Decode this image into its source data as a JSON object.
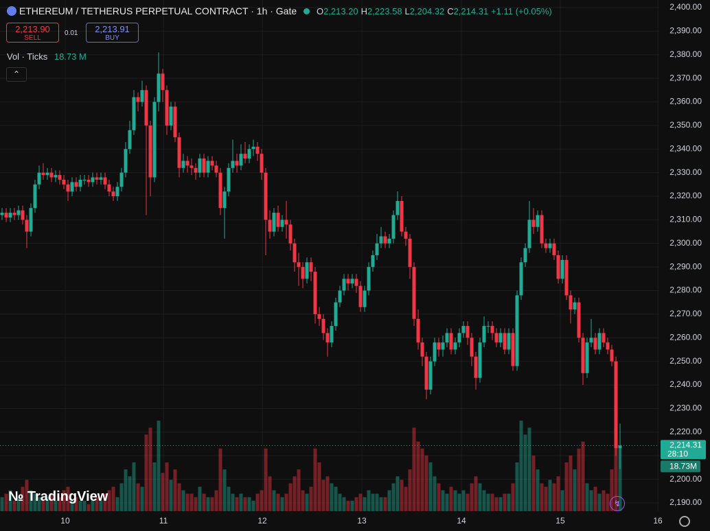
{
  "header": {
    "title": "ETHEREUM / TETHERUS PERPETUAL CONTRACT · 1h · Gate",
    "o_label": "O",
    "o": "2,213.20",
    "h_label": "H",
    "h": "2,223.58",
    "l_label": "L",
    "l": "2,204.32",
    "c_label": "C",
    "c": "2,214.31",
    "change": "+1.11 (+0.05%)"
  },
  "trade": {
    "sell_price": "2,213.90",
    "sell": "SELL",
    "spread": "0.01",
    "buy_price": "2,213.91",
    "buy": "BUY"
  },
  "volume_legend": {
    "label": "Vol · Ticks",
    "value": "18.73 M"
  },
  "logo": "TradingView",
  "chart_data": {
    "type": "candlestick",
    "up_color": "#22ab94",
    "down_color": "#f23645",
    "open": [
      2312,
      2313,
      2311,
      2313,
      2312,
      2314,
      2310,
      2305,
      2315,
      2325,
      2330,
      2329,
      2330,
      2328,
      2329,
      2327,
      2325,
      2322,
      2326,
      2324,
      2327,
      2327,
      2326,
      2328,
      2327,
      2328,
      2325,
      2322,
      2320,
      2324,
      2330,
      2340,
      2348,
      2362,
      2360,
      2365,
      2350,
      2328,
      2360,
      2372,
      2365,
      2350,
      2358,
      2345,
      2332,
      2335,
      2333,
      2332,
      2330,
      2336,
      2330,
      2335,
      2333,
      2330,
      2315,
      2322,
      2332,
      2335,
      2333,
      2338,
      2336,
      2340,
      2341,
      2338,
      2330,
      2310,
      2305,
      2313,
      2307,
      2310,
      2308,
      2300,
      2292,
      2290,
      2285,
      2292,
      2288,
      2270,
      2268,
      2262,
      2258,
      2265,
      2275,
      2280,
      2285,
      2283,
      2285,
      2282,
      2273,
      2280,
      2290,
      2295,
      2300,
      2303,
      2300,
      2302,
      2312,
      2318,
      2305,
      2302,
      2290,
      2268,
      2258,
      2252,
      2238,
      2250,
      2258,
      2255,
      2258,
      2262,
      2255,
      2258,
      2262,
      2265,
      2260,
      2252,
      2243,
      2258,
      2265,
      2265,
      2262,
      2258,
      2262,
      2255,
      2262,
      2248,
      2278,
      2292,
      2298,
      2310,
      2307,
      2312,
      2300,
      2298,
      2300,
      2295,
      2285,
      2293,
      2278,
      2272,
      2275,
      2260,
      2245,
      2258,
      2260,
      2255,
      2262,
      2258,
      2255,
      2250,
      2213.2
    ],
    "high": [
      2315,
      2315,
      2315,
      2315,
      2316,
      2316,
      2312,
      2317,
      2327,
      2333,
      2334,
      2332,
      2332,
      2331,
      2331,
      2329,
      2327,
      2328,
      2328,
      2329,
      2329,
      2329,
      2330,
      2330,
      2330,
      2330,
      2327,
      2324,
      2326,
      2332,
      2343,
      2352,
      2365,
      2364,
      2369,
      2367,
      2352,
      2362,
      2381,
      2374,
      2367,
      2360,
      2360,
      2347,
      2338,
      2337,
      2336,
      2334,
      2338,
      2338,
      2337,
      2337,
      2335,
      2332,
      2324,
      2334,
      2344,
      2338,
      2342,
      2343,
      2342,
      2344,
      2343,
      2340,
      2332,
      2314,
      2315,
      2316,
      2312,
      2318,
      2310,
      2302,
      2296,
      2292,
      2294,
      2294,
      2290,
      2273,
      2270,
      2264,
      2267,
      2277,
      2282,
      2287,
      2287,
      2287,
      2287,
      2284,
      2282,
      2292,
      2297,
      2304,
      2307,
      2305,
      2304,
      2314,
      2322,
      2320,
      2307,
      2304,
      2292,
      2272,
      2260,
      2254,
      2252,
      2260,
      2260,
      2261,
      2264,
      2264,
      2260,
      2264,
      2267,
      2267,
      2262,
      2254,
      2260,
      2269,
      2267,
      2267,
      2264,
      2264,
      2264,
      2264,
      2264,
      2280,
      2294,
      2300,
      2318,
      2315,
      2314,
      2314,
      2302,
      2302,
      2302,
      2297,
      2295,
      2295,
      2280,
      2277,
      2277,
      2262,
      2260,
      2268,
      2262,
      2264,
      2264,
      2260,
      2257,
      2252,
      2223.58
    ],
    "low": [
      2310,
      2309,
      2309,
      2310,
      2310,
      2308,
      2298,
      2303,
      2313,
      2323,
      2327,
      2327,
      2326,
      2326,
      2325,
      2323,
      2318,
      2320,
      2322,
      2322,
      2325,
      2324,
      2324,
      2325,
      2325,
      2323,
      2320,
      2318,
      2318,
      2322,
      2328,
      2338,
      2346,
      2356,
      2358,
      2312,
      2320,
      2326,
      2356,
      2360,
      2346,
      2348,
      2343,
      2328,
      2330,
      2330,
      2329,
      2327,
      2328,
      2328,
      2328,
      2331,
      2328,
      2312,
      2302,
      2320,
      2330,
      2330,
      2331,
      2334,
      2334,
      2337,
      2335,
      2327,
      2295,
      2302,
      2303,
      2305,
      2305,
      2302,
      2297,
      2288,
      2282,
      2281,
      2283,
      2284,
      2266,
      2265,
      2259,
      2252,
      2256,
      2263,
      2273,
      2278,
      2280,
      2281,
      2279,
      2271,
      2271,
      2278,
      2288,
      2293,
      2298,
      2298,
      2298,
      2300,
      2310,
      2303,
      2299,
      2285,
      2265,
      2255,
      2248,
      2234,
      2236,
      2248,
      2252,
      2252,
      2256,
      2253,
      2253,
      2256,
      2260,
      2257,
      2248,
      2238,
      2241,
      2256,
      2262,
      2259,
      2256,
      2256,
      2253,
      2253,
      2246,
      2246,
      2276,
      2290,
      2296,
      2304,
      2305,
      2298,
      2296,
      2296,
      2293,
      2283,
      2283,
      2276,
      2266,
      2270,
      2258,
      2240,
      2243,
      2256,
      2253,
      2253,
      2256,
      2253,
      2248,
      2210,
      2204.32
    ],
    "close": [
      2313,
      2311,
      2313,
      2312,
      2314,
      2310,
      2305,
      2315,
      2325,
      2330,
      2329,
      2330,
      2328,
      2329,
      2327,
      2325,
      2322,
      2326,
      2324,
      2327,
      2327,
      2326,
      2328,
      2327,
      2328,
      2325,
      2322,
      2320,
      2324,
      2330,
      2340,
      2348,
      2362,
      2360,
      2365,
      2350,
      2328,
      2360,
      2372,
      2365,
      2350,
      2358,
      2345,
      2332,
      2335,
      2333,
      2332,
      2330,
      2336,
      2330,
      2335,
      2333,
      2330,
      2315,
      2322,
      2332,
      2335,
      2333,
      2338,
      2336,
      2340,
      2341,
      2338,
      2330,
      2310,
      2305,
      2313,
      2307,
      2310,
      2308,
      2300,
      2292,
      2290,
      2285,
      2292,
      2288,
      2270,
      2268,
      2262,
      2258,
      2265,
      2275,
      2280,
      2285,
      2283,
      2285,
      2282,
      2273,
      2280,
      2290,
      2295,
      2300,
      2303,
      2300,
      2302,
      2312,
      2318,
      2305,
      2302,
      2290,
      2268,
      2258,
      2252,
      2238,
      2250,
      2258,
      2255,
      2258,
      2262,
      2255,
      2258,
      2262,
      2265,
      2260,
      2252,
      2243,
      2258,
      2265,
      2265,
      2262,
      2258,
      2262,
      2255,
      2262,
      2248,
      2278,
      2292,
      2298,
      2310,
      2307,
      2312,
      2300,
      2298,
      2300,
      2295,
      2285,
      2293,
      2278,
      2272,
      2275,
      2260,
      2245,
      2258,
      2260,
      2255,
      2262,
      2258,
      2255,
      2250,
      2213.2,
      2214.31
    ],
    "volume": [
      4,
      5,
      6,
      3,
      4,
      7,
      9,
      6,
      5,
      4,
      3,
      4,
      5,
      3,
      4,
      6,
      7,
      3,
      4,
      3,
      3,
      2,
      3,
      4,
      3,
      5,
      6,
      7,
      4,
      8,
      12,
      10,
      14,
      8,
      7,
      22,
      24,
      14,
      26,
      11,
      14,
      9,
      12,
      8,
      6,
      5,
      5,
      4,
      7,
      5,
      4,
      4,
      6,
      18,
      12,
      7,
      5,
      4,
      5,
      4,
      4,
      3,
      5,
      6,
      18,
      10,
      6,
      5,
      4,
      5,
      8,
      10,
      12,
      6,
      5,
      7,
      18,
      14,
      9,
      10,
      8,
      7,
      5,
      4,
      3,
      3,
      4,
      5,
      4,
      6,
      5,
      5,
      4,
      4,
      6,
      8,
      10,
      9,
      7,
      12,
      24,
      20,
      18,
      16,
      14,
      10,
      8,
      6,
      5,
      7,
      6,
      5,
      6,
      5,
      8,
      10,
      8,
      6,
      5,
      5,
      4,
      4,
      5,
      5,
      8,
      14,
      26,
      22,
      24,
      16,
      12,
      8,
      7,
      9,
      8,
      10,
      6,
      14,
      16,
      12,
      18,
      20,
      8,
      6,
      7,
      5,
      6,
      5,
      12,
      22,
      18.73
    ],
    "ylim": [
      2186.5,
      2403.2
    ],
    "vlim": [
      0,
      147
    ],
    "yticks": [
      {
        "value": 2190,
        "label": "2,190.00"
      },
      {
        "value": 2200,
        "label": "2,200.00"
      },
      {
        "value": 2210,
        "label": "2,210.00"
      },
      {
        "value": 2220,
        "label": "2,220.00"
      },
      {
        "value": 2230,
        "label": "2,230.00"
      },
      {
        "value": 2240,
        "label": "2,240.00"
      },
      {
        "value": 2250,
        "label": "2,250.00"
      },
      {
        "value": 2260,
        "label": "2,260.00"
      },
      {
        "value": 2270,
        "label": "2,270.00"
      },
      {
        "value": 2280,
        "label": "2,280.00"
      },
      {
        "value": 2290,
        "label": "2,290.00"
      },
      {
        "value": 2300,
        "label": "2,300.00"
      },
      {
        "value": 2310,
        "label": "2,310.00"
      },
      {
        "value": 2320,
        "label": "2,320.00"
      },
      {
        "value": 2330,
        "label": "2,330.00"
      },
      {
        "value": 2340,
        "label": "2,340.00"
      },
      {
        "value": 2350,
        "label": "2,350.00"
      },
      {
        "value": 2360,
        "label": "2,360.00"
      },
      {
        "value": 2370,
        "label": "2,370.00"
      },
      {
        "value": 2380,
        "label": "2,380.00"
      },
      {
        "value": 2390,
        "label": "2,390.00"
      },
      {
        "value": 2400,
        "label": "2,400.00"
      }
    ],
    "xticks": [
      {
        "value": 15.33,
        "label": "10"
      },
      {
        "value": 39.17,
        "label": "11"
      },
      {
        "value": 63.17,
        "label": "12"
      },
      {
        "value": 87.33,
        "label": "13"
      },
      {
        "value": 111.5,
        "label": "14"
      },
      {
        "value": 135.5,
        "label": "15"
      },
      {
        "value": 159.17,
        "label": "16"
      }
    ],
    "last_price": {
      "value": 2214.31,
      "label": "2,214.31"
    },
    "countdown": "28:10",
    "last_volume_label": "18.73M",
    "grid": true
  }
}
